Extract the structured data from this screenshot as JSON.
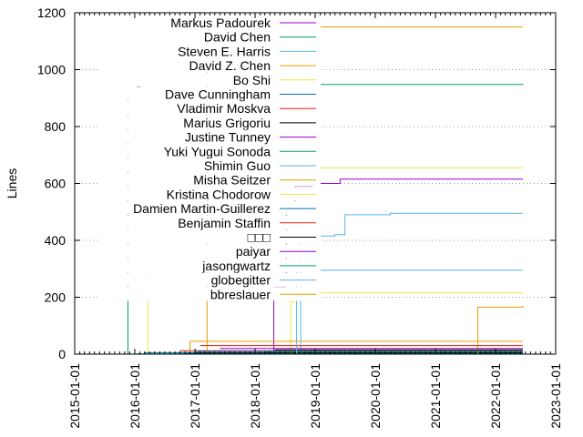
{
  "chart_data": {
    "type": "line",
    "title": "",
    "xlabel": "",
    "ylabel": "Lines",
    "xlim": [
      "2015-01-01",
      "2023-01-01"
    ],
    "ylim": [
      0,
      1200
    ],
    "x_tick_labels": [
      "2015-01-01",
      "2016-01-01",
      "2017-01-01",
      "2018-01-01",
      "2019-01-01",
      "2020-01-01",
      "2021-01-01",
      "2022-01-01",
      "2023-01-01"
    ],
    "y_ticks": [
      0,
      200,
      400,
      600,
      800,
      1000,
      1200
    ],
    "grid": "y-dotted",
    "legend_position": "top-left",
    "series": [
      {
        "name": "Markus Padourek",
        "color": "#9400d3",
        "x": [
          "2016-10-15",
          "2017-01-20",
          "2022-06-15"
        ],
        "y": [
          0,
          5,
          5
        ]
      },
      {
        "name": "David Chen",
        "color": "#009e73",
        "x": [
          "2015-11-05",
          "2015-11-20",
          "2015-12-15",
          "2016-01-15",
          "2016-02-01",
          "2022-06-15"
        ],
        "y": [
          0,
          900,
          930,
          940,
          948,
          950
        ]
      },
      {
        "name": "Steven E. Harris",
        "color": "#56b4e9",
        "x": [
          "2016-10-01",
          "2022-06-15"
        ],
        "y": [
          2,
          2
        ]
      },
      {
        "name": "David Z. Chen",
        "color": "#e69f00",
        "x": [
          "2017-03-05",
          "2017-03-15",
          "2017-03-25",
          "2022-06-15"
        ],
        "y": [
          0,
          1120,
          1150,
          1150
        ]
      },
      {
        "name": "Bo Shi",
        "color": "#f0e442",
        "x": [
          "2016-03-05",
          "2016-03-20",
          "2022-06-15"
        ],
        "y": [
          0,
          655,
          655
        ]
      },
      {
        "name": "Dave Cunningham",
        "color": "#0072b2",
        "x": [
          "2016-09-01",
          "2022-06-15"
        ],
        "y": [
          5,
          5
        ]
      },
      {
        "name": "Vladimir Moskva",
        "color": "#e51e10",
        "x": [
          "2016-10-01",
          "2022-06-15"
        ],
        "y": [
          12,
          12
        ]
      },
      {
        "name": "Marius Grigoriu",
        "color": "#000000",
        "x": [
          "2016-11-01",
          "2022-06-15"
        ],
        "y": [
          4,
          4
        ]
      },
      {
        "name": "Justine Tunney",
        "color": "#9400d3",
        "x": [
          "2018-04-20",
          "2018-04-25",
          "2018-07-01",
          "2018-07-10",
          "2018-09-01",
          "2018-12-15",
          "2019-06-01",
          "2022-06-15"
        ],
        "y": [
          0,
          235,
          240,
          530,
          590,
          600,
          615,
          615
        ]
      },
      {
        "name": "Yuki Yugui Sonoda",
        "color": "#009e73",
        "x": [
          "2016-01-01",
          "2022-06-15"
        ],
        "y": [
          1,
          1
        ]
      },
      {
        "name": "Shimin Guo",
        "color": "#56b4e9",
        "x": [
          "2018-09-20",
          "2018-10-05",
          "2019-05-01",
          "2019-07-01",
          "2020-04-01",
          "2022-06-15"
        ],
        "y": [
          0,
          415,
          420,
          490,
          495,
          495
        ]
      },
      {
        "name": "Misha Seitzer",
        "color": "#e69f00",
        "x": [
          "2021-08-20",
          "2021-09-15",
          "2022-06-15"
        ],
        "y": [
          0,
          165,
          170
        ]
      },
      {
        "name": "Kristina Chodorow",
        "color": "#f0e442",
        "x": [
          "2018-07-20",
          "2018-08-05",
          "2018-09-01",
          "2022-06-15"
        ],
        "y": [
          0,
          185,
          215,
          215
        ]
      },
      {
        "name": "Damien Martin-Guillerez",
        "color": "#0072b2",
        "x": [
          "2016-01-01",
          "2016-03-01",
          "2017-01-01",
          "2022-06-15"
        ],
        "y": [
          0,
          5,
          10,
          10
        ]
      },
      {
        "name": "Benjamin Staffin",
        "color": "#e51e10",
        "x": [
          "2017-02-01",
          "2022-06-15"
        ],
        "y": [
          30,
          30
        ]
      },
      {
        "name": "\u0000\u0000\u0000",
        "color": "#000000",
        "x": [
          "2018-05-01",
          "2022-06-15"
        ],
        "y": [
          15,
          15
        ]
      },
      {
        "name": "paiyar",
        "color": "#9400d3",
        "x": [
          "2017-06-01",
          "2022-06-15"
        ],
        "y": [
          20,
          20
        ]
      },
      {
        "name": "jasongwartz",
        "color": "#009e73",
        "x": [
          "2018-03-01",
          "2022-06-15"
        ],
        "y": [
          8,
          8
        ]
      },
      {
        "name": "globegitter",
        "color": "#56b4e9",
        "x": [
          "2018-08-20",
          "2018-09-10",
          "2018-10-01",
          "2022-06-15"
        ],
        "y": [
          0,
          290,
          295,
          295
        ]
      },
      {
        "name": "bbreslauer",
        "color": "#e69f00",
        "x": [
          "2016-10-01",
          "2016-12-01",
          "2022-06-15"
        ],
        "y": [
          0,
          45,
          45
        ]
      }
    ]
  }
}
